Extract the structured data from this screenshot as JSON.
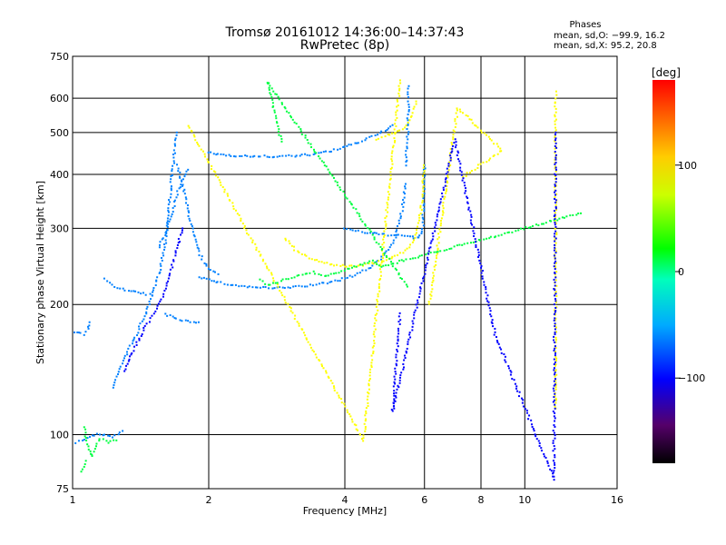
{
  "chart_data": {
    "type": "scatter",
    "title": "Tromsø 20161012 14:36:00–14:37:43",
    "subtitle": "RwPretec (8p)",
    "xlabel": "Frequency [MHz]",
    "ylabel": "Stationary phase Virtual Height [km]",
    "x_scale": "log",
    "y_scale": "log",
    "xlim": [
      1,
      16
    ],
    "ylim": [
      75,
      750
    ],
    "x_ticks": [
      1,
      2,
      4,
      6,
      8,
      10,
      16
    ],
    "x_tick_labels": [
      "1",
      "2",
      "4",
      "6",
      "8",
      "10",
      "16"
    ],
    "x_grid": [
      1,
      2,
      4,
      6,
      8,
      10,
      16
    ],
    "y_ticks": [
      75,
      100,
      200,
      300,
      400,
      500,
      600,
      750
    ],
    "y_tick_labels": [
      "75",
      "100",
      "200",
      "300",
      "400",
      "500",
      "600",
      "750"
    ],
    "y_grid": [
      100,
      200,
      300,
      400,
      500,
      600
    ],
    "grid": true,
    "phase_box": {
      "title": "Phases",
      "line_o": "mean, sd,O: −99.9, 16.2",
      "line_x": "mean, sd,X:  95.2, 20.8"
    },
    "colorbar": {
      "label": "[deg]",
      "range": [
        -180,
        180
      ],
      "ticks": [
        100,
        0,
        -100
      ],
      "tick_labels": [
        "100",
        "0",
        "−100"
      ],
      "location": "right"
    },
    "series": [
      {
        "color_phase": -100,
        "traces": [
          {
            "x": [
              1.02,
              1.05,
              1.09,
              1.13,
              1.18,
              1.22,
              1.26,
              1.29
            ],
            "y": [
              96,
              97,
              99,
              100,
              100,
              99,
              100,
              102
            ]
          },
          {
            "x": [
              1.01,
              1.03,
              1.06,
              1.08,
              1.09
            ],
            "y": [
              172,
              173,
              170,
              175,
              182
            ]
          },
          {
            "x": [
              1.23,
              1.26,
              1.3,
              1.35,
              1.4,
              1.45,
              1.5,
              1.55,
              1.6,
              1.63,
              1.66,
              1.68,
              1.7
            ],
            "y": [
              128,
              140,
              150,
              162,
              175,
              190,
              210,
              235,
              275,
              330,
              400,
              450,
              500
            ]
          },
          {
            "x": [
              1.55,
              1.6,
              1.65,
              1.7,
              1.75,
              1.8
            ],
            "y": [
              270,
              290,
              320,
              360,
              390,
              410
            ]
          },
          {
            "x": [
              1.7,
              1.75,
              1.8,
              1.85,
              1.9,
              1.95,
              2.0,
              2.05,
              2.1
            ],
            "y": [
              420,
              380,
              330,
              290,
              265,
              250,
              242,
              238,
              235
            ]
          },
          {
            "x": [
              1.18,
              1.22,
              1.27,
              1.33,
              1.4,
              1.5
            ],
            "y": [
              230,
              222,
              218,
              215,
              213,
              210
            ]
          },
          {
            "x": [
              1.6,
              1.7,
              1.8,
              1.9
            ],
            "y": [
              190,
              185,
              183,
              182
            ]
          },
          {
            "x": [
              1.9,
              2.0,
              2.1,
              2.2,
              2.4,
              2.6,
              2.8,
              3.0,
              3.3,
              3.6,
              3.9,
              4.2,
              4.5,
              4.8,
              5.0,
              5.2,
              5.35,
              5.45
            ],
            "y": [
              232,
              228,
              225,
              223,
              220,
              219,
              218,
              219,
              221,
              224,
              228,
              234,
              242,
              255,
              268,
              290,
              330,
              380
            ]
          },
          {
            "x": [
              5.45,
              5.5,
              5.52,
              5.53,
              5.54
            ],
            "y": [
              420,
              480,
              540,
              600,
              640
            ]
          },
          {
            "x": [
              2.0,
              2.1,
              2.3,
              2.5,
              2.8,
              3.1,
              3.4,
              3.7,
              4.0,
              4.3,
              4.6,
              4.9,
              5.1
            ],
            "y": [
              450,
              445,
              442,
              440,
              440,
              441,
              445,
              452,
              462,
              475,
              490,
              505,
              520
            ]
          },
          {
            "x": [
              4.0,
              4.3,
              4.6,
              4.9,
              5.2,
              5.5,
              5.7,
              5.85,
              5.95,
              6.0
            ],
            "y": [
              300,
              295,
              292,
              290,
              290,
              288,
              285,
              285,
              300,
              420
            ]
          }
        ]
      },
      {
        "color_phase": 100,
        "traces": [
          {
            "x": [
              2.95,
              3.1,
              3.3,
              3.5,
              3.7,
              3.9,
              4.1,
              4.4,
              4.7,
              5.0,
              5.3,
              5.55,
              5.75,
              5.9,
              5.98
            ],
            "y": [
              285,
              268,
              258,
              252,
              248,
              246,
              245,
              247,
              250,
              255,
              262,
              272,
              290,
              330,
              420
            ]
          },
          {
            "x": [
              4.7,
              4.9,
              5.1,
              5.3,
              5.45,
              5.6,
              5.75
            ],
            "y": [
              480,
              490,
              498,
              505,
              515,
              540,
              590
            ]
          },
          {
            "x": [
              6.15,
              7.1,
              8.9,
              7.3
            ],
            "y": [
              200,
              570,
              455,
              395
            ]
          },
          {
            "x": [
              11.7,
              11.7,
              11.7,
              11.7,
              11.7,
              11.7,
              11.7,
              11.7,
              11.7,
              11.7,
              11.7,
              11.7,
              11.7,
              11.7
            ],
            "y": [
              620,
              590,
              550,
              500,
              450,
              395,
              330,
              290,
              250,
              215,
              175,
              150,
              125,
              115
            ]
          },
          {
            "x": [
              1.8,
              4.4,
              5.3
            ],
            "y": [
              520,
              97,
              660
            ]
          }
        ]
      },
      {
        "color_phase": 0,
        "traces": [
          {
            "x": [
              1.06,
              1.08,
              1.1,
              1.15,
              1.2,
              1.25
            ],
            "y": [
              104,
              95,
              89,
              98,
              96,
              97
            ]
          },
          {
            "x": [
              1.05,
              1.07
            ],
            "y": [
              82,
              87
            ]
          },
          {
            "x": [
              2.6,
              2.7,
              3.4,
              3.6,
              4.6,
              4.8,
              13.3
            ],
            "y": [
              228,
              222,
              238,
              232,
              252,
              245,
              325
            ]
          },
          {
            "x": [
              2.9,
              2.7,
              5.5
            ],
            "y": [
              475,
              655,
              220
            ]
          }
        ]
      },
      {
        "color_phase": -140,
        "traces": [
          {
            "x": [
              1.3,
              1.35,
              1.4,
              1.45,
              1.5,
              1.55,
              1.6,
              1.65,
              1.7,
              1.75
            ],
            "y": [
              140,
              155,
              165,
              178,
              188,
              200,
              215,
              240,
              270,
              300
            ]
          },
          {
            "x": [
              5.3,
              5.1,
              7.0,
              8.6,
              11.6,
              11.7
            ],
            "y": [
              190,
              113,
              480,
              170,
              79,
              500
            ]
          }
        ]
      }
    ]
  }
}
